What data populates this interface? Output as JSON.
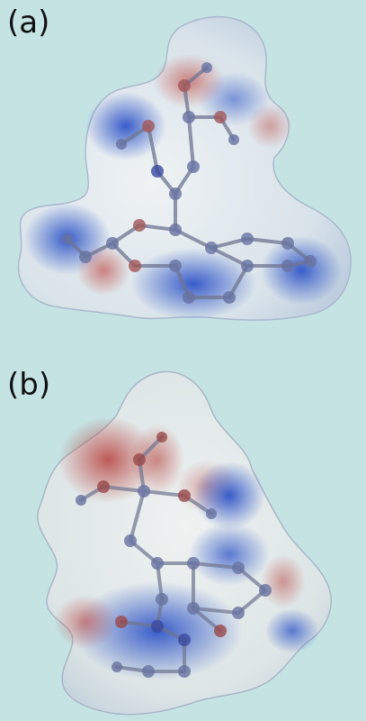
{
  "panels": [
    {
      "label": "(a)"
    },
    {
      "label": "(b)"
    }
  ],
  "colors": {
    "background": "#c6e3e4",
    "surface_positive": "#3b5fd0",
    "surface_negative": "#c04a45",
    "surface_neutral": "#e8eef0",
    "atom": "#5a6a9a",
    "bond": "#7a7f96"
  }
}
